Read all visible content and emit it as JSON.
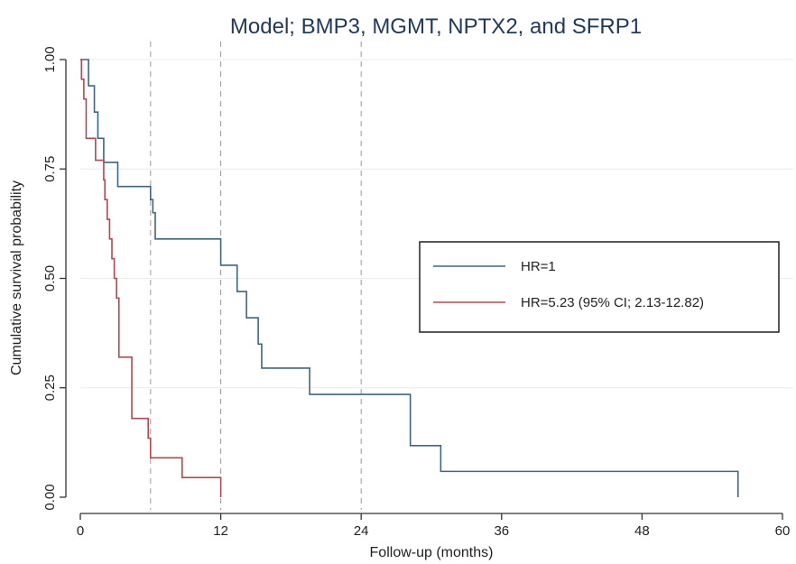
{
  "chart_data": {
    "type": "line",
    "title": "Model; BMP3, MGMT, NPTX2, and SFRP1",
    "xlabel": "Follow-up (months)",
    "ylabel": "Cumulative survival probability",
    "xlim": [
      0,
      60
    ],
    "ylim": [
      0,
      1
    ],
    "xticks": [
      0,
      12,
      24,
      36,
      48,
      60
    ],
    "xtick_labels": [
      "0",
      "12",
      "24",
      "36",
      "48",
      "60"
    ],
    "yticks": [
      0,
      0.25,
      0.5,
      0.75,
      1.0
    ],
    "ytick_labels": [
      "0.00",
      "0.25",
      "0.50",
      "0.75",
      "1.00"
    ],
    "reference_lines_x": [
      6,
      12,
      24
    ],
    "grid": "horizontal",
    "legend_position": "right",
    "series": [
      {
        "name": "HR=1",
        "color": "#3d6680",
        "step": true,
        "x": [
          0,
          0.7,
          1.2,
          1.5,
          2.0,
          2.5,
          3.2,
          6.0,
          6.2,
          6.4,
          12.0,
          12.6,
          13.4,
          14.2,
          15.2,
          15.5,
          19.6,
          28.2,
          30.8,
          56.2
        ],
        "y": [
          1.0,
          0.94,
          0.88,
          0.82,
          0.765,
          0.765,
          0.71,
          0.68,
          0.65,
          0.59,
          0.53,
          0.53,
          0.47,
          0.41,
          0.35,
          0.295,
          0.235,
          0.118,
          0.059,
          0.0
        ]
      },
      {
        "name": "HR=5.23 (95% CI; 2.13-12.82)",
        "color": "#b5484e",
        "step": true,
        "x": [
          0,
          0.1,
          0.3,
          0.5,
          1.3,
          2.0,
          2.1,
          2.3,
          2.5,
          2.7,
          2.9,
          3.1,
          3.3,
          4.4,
          5.8,
          6.0,
          6.2,
          8.7,
          12.0
        ],
        "y": [
          1.0,
          0.955,
          0.91,
          0.82,
          0.77,
          0.725,
          0.68,
          0.635,
          0.59,
          0.545,
          0.5,
          0.455,
          0.32,
          0.18,
          0.135,
          0.09,
          0.09,
          0.045,
          0.0
        ]
      }
    ]
  },
  "colors": {
    "background": "#ffffff",
    "axis": "#333333",
    "grid": "#e6ecf0",
    "reference": "#999999",
    "title": "#1f3a5a"
  }
}
